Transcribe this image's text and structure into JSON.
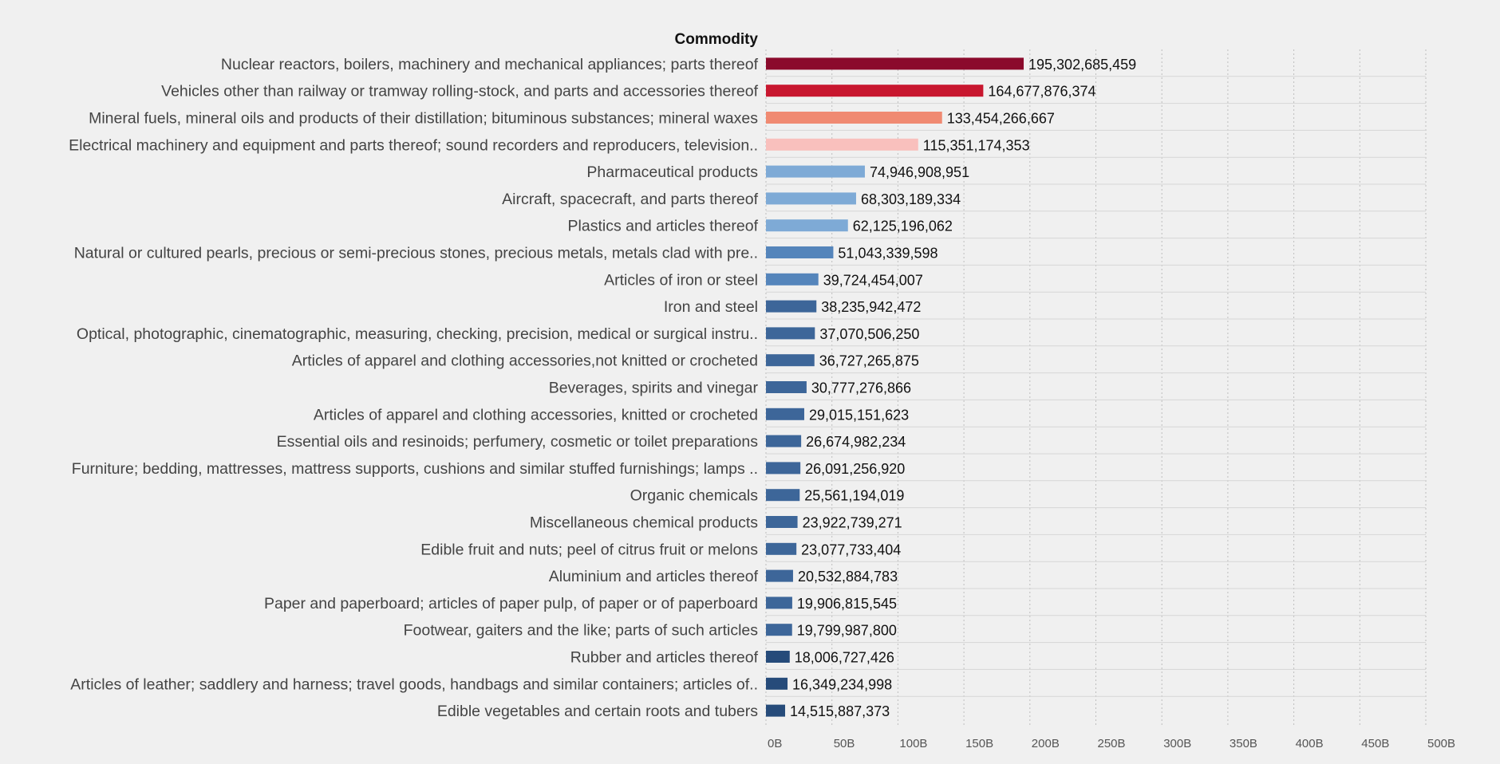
{
  "chart_data": {
    "type": "bar",
    "orientation": "horizontal",
    "title": "Commodity",
    "xlabel": "",
    "ylabel": "Commodity",
    "xlim": [
      0,
      500000000000
    ],
    "grid": true,
    "tick_values": [
      0,
      50000000000,
      100000000000,
      150000000000,
      200000000000,
      250000000000,
      300000000000,
      350000000000,
      400000000000,
      450000000000,
      500000000000
    ],
    "tick_labels": [
      "0B",
      "50B",
      "100B",
      "150B",
      "200B",
      "250B",
      "300B",
      "350B",
      "400B",
      "450B",
      "500B"
    ],
    "categories": [
      "Nuclear reactors, boilers, machinery and mechanical appliances; parts thereof",
      "Vehicles other than railway or tramway rolling-stock, and parts and accessories thereof",
      "Mineral fuels, mineral oils and products of their distillation; bituminous substances; mineral waxes",
      "Electrical machinery and equipment and parts thereof; sound recorders and reproducers, television..",
      "Pharmaceutical products",
      "Aircraft, spacecraft, and parts thereof",
      "Plastics and articles thereof",
      "Natural or cultured pearls, precious or semi-precious stones, precious metals, metals clad with pre..",
      "Articles of iron or steel",
      "Iron and steel",
      "Optical, photographic, cinematographic, measuring, checking, precision, medical or surgical instru..",
      "Articles of apparel and clothing accessories,not knitted or crocheted",
      "Beverages, spirits and vinegar",
      "Articles of apparel and clothing accessories, knitted or crocheted",
      "Essential oils and resinoids; perfumery, cosmetic or toilet preparations",
      "Furniture; bedding, mattresses, mattress supports, cushions and similar stuffed furnishings; lamps ..",
      "Organic chemicals",
      "Miscellaneous chemical products",
      "Edible fruit and nuts; peel of citrus fruit or melons",
      "Aluminium and articles thereof",
      "Paper and paperboard; articles of paper pulp, of paper or of paperboard",
      "Footwear, gaiters and the like; parts of such articles",
      "Rubber and articles thereof",
      "Articles of leather; saddlery and harness; travel goods, handbags and similar containers; articles of..",
      "Edible vegetables and certain roots and tubers"
    ],
    "values": [
      195302685459,
      164677876374,
      133454266667,
      115351174353,
      74946908951,
      68303189334,
      62125196062,
      51043339598,
      39724454007,
      38235942472,
      37070506250,
      36727265875,
      30777276866,
      29015151623,
      26674982234,
      26091256920,
      25561194019,
      23922739271,
      23077733404,
      20532884783,
      19906815545,
      19799987800,
      18006727426,
      16349234998,
      14515887373
    ],
    "value_labels": [
      "195,302,685,459",
      "164,677,876,374",
      "133,454,266,667",
      "115,351,174,353",
      "74,946,908,951",
      "68,303,189,334",
      "62,125,196,062",
      "51,043,339,598",
      "39,724,454,007",
      "38,235,942,472",
      "37,070,506,250",
      "36,727,265,875",
      "30,777,276,866",
      "29,015,151,623",
      "26,674,982,234",
      "26,091,256,920",
      "25,561,194,019",
      "23,922,739,271",
      "23,077,733,404",
      "20,532,884,783",
      "19,906,815,545",
      "19,799,987,800",
      "18,006,727,426",
      "16,349,234,998",
      "14,515,887,373"
    ],
    "colors": [
      "#8b0a2c",
      "#c8172f",
      "#f08a72",
      "#f9c0bd",
      "#7eaad6",
      "#7eaad6",
      "#7eaad6",
      "#5585bb",
      "#5585bb",
      "#3d6699",
      "#3d6699",
      "#3d6699",
      "#3d6699",
      "#3d6699",
      "#3d6699",
      "#3d6699",
      "#3d6699",
      "#3d6699",
      "#3d6699",
      "#3d6699",
      "#3d6699",
      "#3d6699",
      "#264b7a",
      "#264b7a",
      "#264b7a"
    ]
  }
}
